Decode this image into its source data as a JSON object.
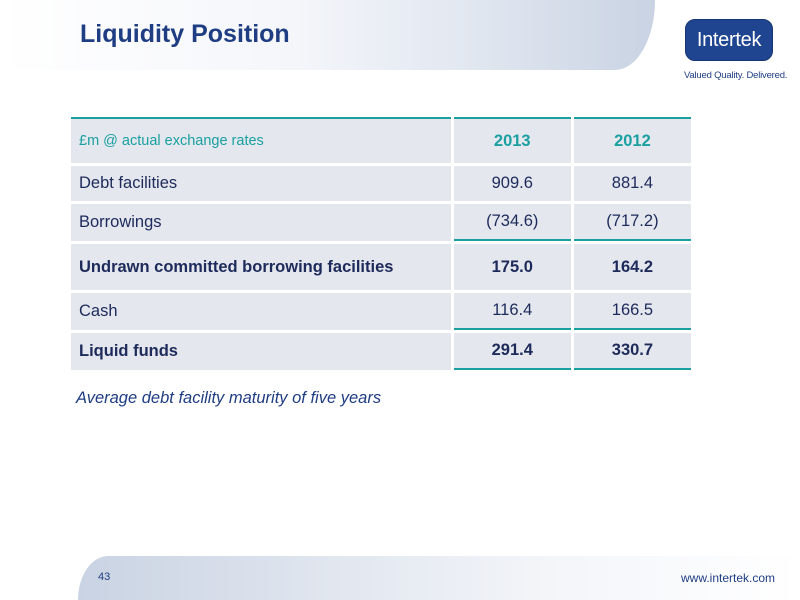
{
  "slide": {
    "title": "Liquidity Position"
  },
  "logo": {
    "wordmark": "Intertek",
    "tagline": "Valued Quality. Delivered."
  },
  "table": {
    "header": {
      "label": "£m @ actual exchange rates",
      "col1": "2013",
      "col2": "2012"
    },
    "rows": [
      {
        "label": "Debt facilities",
        "v2013": "909.6",
        "v2012": "881.4"
      },
      {
        "label": "Borrowings",
        "v2013": "(734.6)",
        "v2012": "(717.2)"
      },
      {
        "label": "Undrawn committed borrowing facilities",
        "v2013": "175.0",
        "v2012": "164.2"
      },
      {
        "label": "Cash",
        "v2013": "116.4",
        "v2012": "166.5"
      },
      {
        "label": "Liquid funds",
        "v2013": "291.4",
        "v2012": "330.7"
      }
    ]
  },
  "note": "Average debt facility maturity of five years",
  "footer": {
    "page_number": "43",
    "website": "www.intertek.com"
  },
  "colors": {
    "title": "#1f3d82",
    "accent_teal": "#1aa0a0",
    "cell_bg": "#e4e7ee",
    "logo_bg": "#1f4591"
  }
}
